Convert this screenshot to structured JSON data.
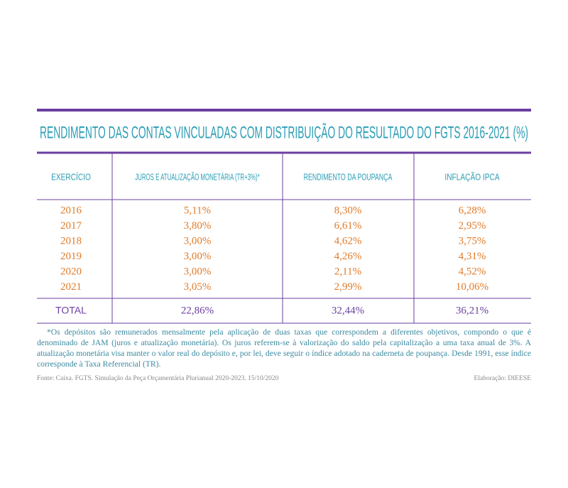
{
  "title": "RENDIMENTO DAS CONTAS VINCULADAS COM DISTRIBUIÇÃO DO RESULTADO DO FGTS 2016-2021 (%)",
  "table": {
    "header": [
      "EXERCÍCIO",
      "JUROS E ATUALIZAÇÃO MONETÁRIA (TR+3%)*",
      "RENDIMENTO DA POUPANÇA",
      "INFLAÇÃO IPCA"
    ],
    "rows": [
      [
        "2016",
        "5,11%",
        "8,30%",
        "6,28%"
      ],
      [
        "2017",
        "3,80%",
        "6,61%",
        "2,95%"
      ],
      [
        "2018",
        "3,00%",
        "4,62%",
        "3,75%"
      ],
      [
        "2019",
        "3,00%",
        "4,26%",
        "4,31%"
      ],
      [
        "2020",
        "3,00%",
        "2,11%",
        "4,52%"
      ],
      [
        "2021",
        "3,05%",
        "2,99%",
        "10,06%"
      ]
    ],
    "total": [
      "TOTAL",
      "22,86%",
      "32,44%",
      "36,21%"
    ]
  },
  "note": "*Os depósitos são remunerados mensalmente pela aplicação de duas taxas que correspondem a diferentes objetivos, compondo o que é denominado de JAM (juros e atualização monetária). Os juros referem-se à valorização do saldo pela capitalização a uma taxa anual de 3%. A atualização monetária visa manter o valor real do depósito e, por lei, deve seguir o índice adotado na caderneta de poupança. Desde 1991, esse índice corresponde à Taxa Referencial (TR).",
  "source": "Fonte: Caixa. FGTS. Simulação da Peça Orçamentária Plurianual 2020-2023. 15/10/2020",
  "credit": "Elaboração: DIEESE"
}
